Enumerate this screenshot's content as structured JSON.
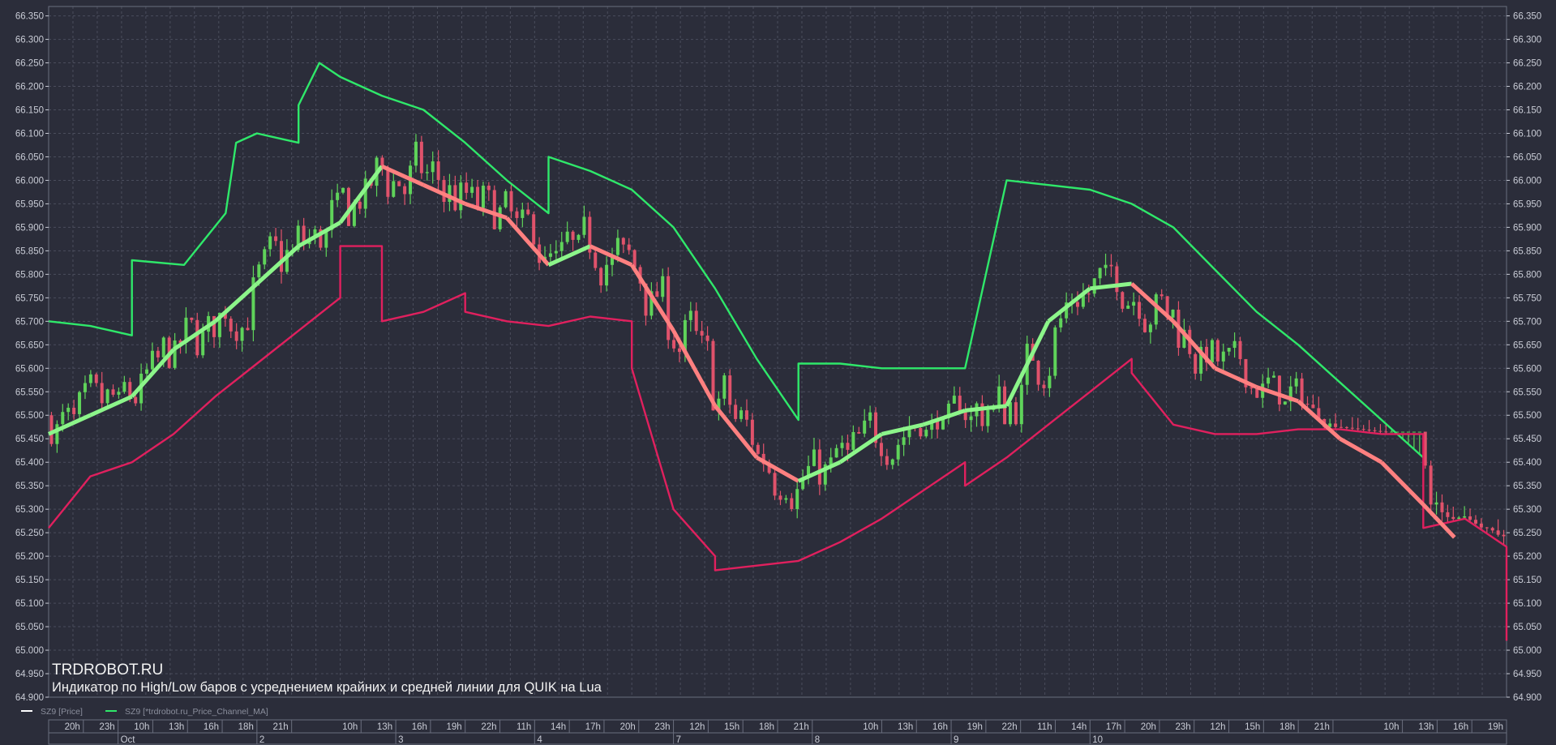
{
  "colors": {
    "background": "#2b2d3a",
    "grid": "#4a4d5c",
    "axis_text": "#c9ccd6",
    "bull_candle": "#5fd35a",
    "bear_candle": "#e0526b",
    "channel_upper": "#2fe86a",
    "channel_lower": "#e0205e",
    "ma_up": "#8cf58a",
    "ma_down": "#ff8080"
  },
  "overlay": {
    "title": "TRDROBOT.RU",
    "subtitle": "Индикатор по High/Low баров с усреднением крайних и средней линии для QUIK на Lua"
  },
  "legend": [
    {
      "label": "SZ9 [Price]",
      "color": "#ffffff"
    },
    {
      "label": "SZ9 [*trdrobot.ru_Price_Channel_MA]",
      "color": "#2fe86a"
    }
  ],
  "chart_data": {
    "type": "line",
    "title": "",
    "ylim": [
      64900,
      66370
    ],
    "y_ticks": [
      64900,
      64950,
      65000,
      65050,
      65100,
      65150,
      65200,
      65250,
      65300,
      65350,
      65400,
      65450,
      65500,
      65550,
      65600,
      65650,
      65700,
      65750,
      65800,
      65850,
      65900,
      65950,
      66000,
      66050,
      66100,
      66150,
      66200,
      66250,
      66300,
      66350
    ],
    "y_tick_labels": [
      "64.900",
      "64.950",
      "65.000",
      "65.050",
      "65.100",
      "65.150",
      "65.200",
      "65.250",
      "65.300",
      "65.350",
      "65.400",
      "65.450",
      "65.500",
      "65.550",
      "65.600",
      "65.650",
      "65.700",
      "65.750",
      "65.800",
      "65.850",
      "65.900",
      "65.950",
      "66.000",
      "66.050",
      "66.100",
      "66.150",
      "66.200",
      "66.250",
      "66.300",
      "66.350"
    ],
    "x_hours": [
      "20h",
      "23h",
      "10h",
      "13h",
      "16h",
      "18h",
      "21h",
      "10h",
      "13h",
      "16h",
      "19h",
      "22h",
      "11h",
      "14h",
      "17h",
      "20h",
      "23h",
      "12h",
      "15h",
      "18h",
      "21h",
      "10h",
      "13h",
      "16h",
      "19h",
      "22h",
      "11h",
      "14h",
      "17h",
      "20h",
      "23h",
      "12h",
      "15h",
      "18h",
      "21h",
      "10h",
      "13h",
      "16h",
      "19h"
    ],
    "x_days": [
      "Oct",
      "2",
      "3",
      "4",
      "7",
      "8",
      "9",
      "10"
    ],
    "x_span": [
      0,
      140
    ],
    "hour_positions": [
      4,
      8,
      12,
      16,
      20,
      24,
      28,
      36,
      40,
      44,
      48,
      52,
      56,
      60,
      64,
      68,
      72,
      76,
      80,
      84,
      88,
      96,
      100,
      104,
      108,
      112,
      116,
      120,
      124,
      128,
      132,
      136,
      140,
      144,
      148,
      156,
      160,
      164,
      168
    ],
    "day_positions": [
      8,
      24,
      40,
      56,
      72,
      88,
      104,
      120
    ],
    "series": [
      {
        "name": "Channel upper",
        "role": "upper",
        "points": [
          [
            0,
            65700
          ],
          [
            4,
            65690
          ],
          [
            8,
            65670
          ],
          [
            8,
            65830
          ],
          [
            13,
            65820
          ],
          [
            17,
            65930
          ],
          [
            18,
            66080
          ],
          [
            20,
            66100
          ],
          [
            22,
            66090
          ],
          [
            24,
            66080
          ],
          [
            24,
            66160
          ],
          [
            26,
            66250
          ],
          [
            28,
            66220
          ],
          [
            32,
            66180
          ],
          [
            36,
            66150
          ],
          [
            40,
            66080
          ],
          [
            44,
            66000
          ],
          [
            48,
            65930
          ],
          [
            48,
            66050
          ],
          [
            52,
            66020
          ],
          [
            56,
            65980
          ],
          [
            60,
            65900
          ],
          [
            64,
            65770
          ],
          [
            68,
            65620
          ],
          [
            72,
            65490
          ],
          [
            72,
            65610
          ],
          [
            76,
            65610
          ],
          [
            80,
            65600
          ],
          [
            84,
            65600
          ],
          [
            88,
            65600
          ],
          [
            92,
            66000
          ],
          [
            96,
            65990
          ],
          [
            100,
            65980
          ],
          [
            104,
            65950
          ],
          [
            108,
            65900
          ],
          [
            112,
            65810
          ],
          [
            116,
            65720
          ],
          [
            120,
            65650
          ],
          [
            124,
            65570
          ],
          [
            128,
            65490
          ],
          [
            132,
            65410
          ]
        ]
      },
      {
        "name": "Channel lower",
        "role": "lower",
        "points": [
          [
            0,
            65260
          ],
          [
            4,
            65370
          ],
          [
            8,
            65400
          ],
          [
            12,
            65460
          ],
          [
            16,
            65540
          ],
          [
            20,
            65610
          ],
          [
            24,
            65680
          ],
          [
            28,
            65750
          ],
          [
            28,
            65860
          ],
          [
            32,
            65860
          ],
          [
            32,
            65700
          ],
          [
            36,
            65720
          ],
          [
            40,
            65760
          ],
          [
            40,
            65720
          ],
          [
            44,
            65700
          ],
          [
            48,
            65690
          ],
          [
            52,
            65710
          ],
          [
            56,
            65700
          ],
          [
            56,
            65600
          ],
          [
            60,
            65300
          ],
          [
            64,
            65200
          ],
          [
            64,
            65170
          ],
          [
            68,
            65180
          ],
          [
            72,
            65190
          ],
          [
            76,
            65230
          ],
          [
            80,
            65280
          ],
          [
            84,
            65340
          ],
          [
            88,
            65400
          ],
          [
            88,
            65350
          ],
          [
            92,
            65410
          ],
          [
            96,
            65480
          ],
          [
            100,
            65550
          ],
          [
            104,
            65620
          ],
          [
            104,
            65590
          ],
          [
            108,
            65480
          ],
          [
            112,
            65460
          ],
          [
            116,
            65460
          ],
          [
            120,
            65470
          ],
          [
            124,
            65470
          ],
          [
            128,
            65460
          ],
          [
            132,
            65460
          ],
          [
            132,
            65260
          ],
          [
            136,
            65280
          ],
          [
            140,
            65220
          ],
          [
            140,
            65020
          ]
        ]
      },
      {
        "name": "Middle MA",
        "role": "ma",
        "points": [
          [
            0,
            65460
          ],
          [
            4,
            65500
          ],
          [
            8,
            65540
          ],
          [
            12,
            65640
          ],
          [
            16,
            65700
          ],
          [
            20,
            65780
          ],
          [
            24,
            65860
          ],
          [
            28,
            65910
          ],
          [
            32,
            66030
          ],
          [
            36,
            65990
          ],
          [
            40,
            65950
          ],
          [
            44,
            65920
          ],
          [
            48,
            65820
          ],
          [
            52,
            65860
          ],
          [
            56,
            65820
          ],
          [
            60,
            65680
          ],
          [
            64,
            65520
          ],
          [
            68,
            65410
          ],
          [
            72,
            65360
          ],
          [
            76,
            65400
          ],
          [
            80,
            65460
          ],
          [
            84,
            65480
          ],
          [
            88,
            65510
          ],
          [
            92,
            65520
          ],
          [
            96,
            65700
          ],
          [
            100,
            65770
          ],
          [
            104,
            65780
          ],
          [
            108,
            65700
          ],
          [
            112,
            65600
          ],
          [
            116,
            65560
          ],
          [
            120,
            65530
          ],
          [
            124,
            65450
          ],
          [
            128,
            65400
          ],
          [
            132,
            65310
          ],
          [
            135,
            65240
          ]
        ]
      }
    ],
    "candle_count": 260
  }
}
